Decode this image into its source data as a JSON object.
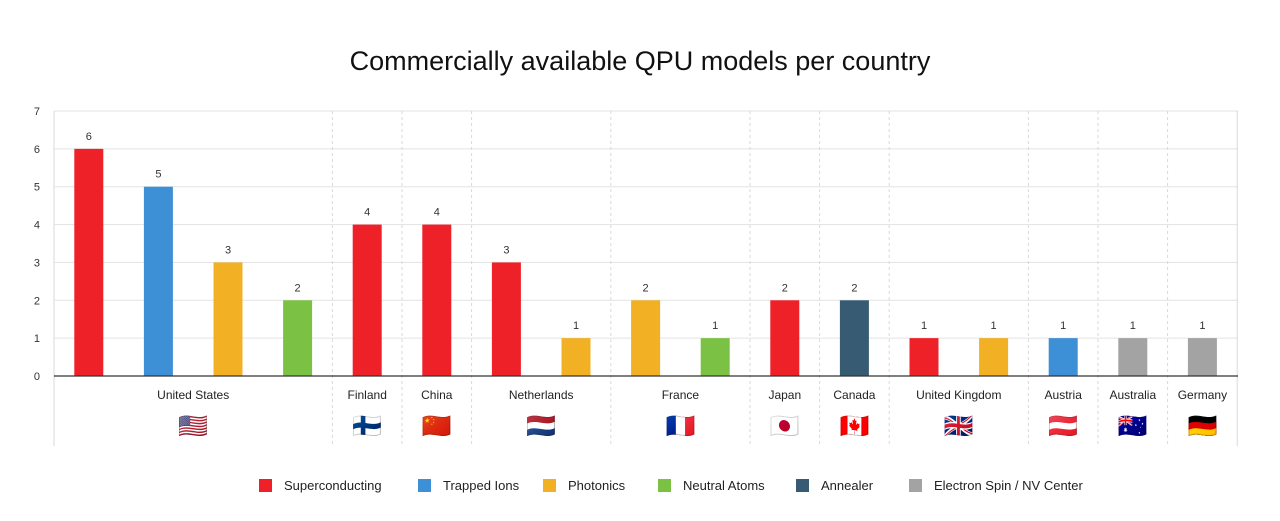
{
  "chart_data": {
    "type": "bar",
    "title": "Commercially available QPU models per country",
    "xlabel": "",
    "ylabel": "",
    "ylim": [
      0,
      7
    ],
    "yticks": [
      0,
      1,
      2,
      3,
      4,
      5,
      6,
      7
    ],
    "grid": true,
    "legend_position": "bottom",
    "series": [
      {
        "name": "Superconducting",
        "color": "#ee2028"
      },
      {
        "name": "Trapped Ions",
        "color": "#3d8fd6"
      },
      {
        "name": "Photonics",
        "color": "#f2b025"
      },
      {
        "name": "Neutral Atoms",
        "color": "#7bc143"
      },
      {
        "name": "Annealer",
        "color": "#365b72"
      },
      {
        "name": "Electron Spin / NV Center",
        "color": "#a3a3a3"
      }
    ],
    "groups": [
      {
        "country": "United States",
        "flag": "🇺🇸",
        "bars": [
          {
            "series": "Superconducting",
            "value": 6
          },
          {
            "series": "Trapped Ions",
            "value": 5
          },
          {
            "series": "Photonics",
            "value": 3
          },
          {
            "series": "Neutral Atoms",
            "value": 2
          }
        ]
      },
      {
        "country": "Finland",
        "flag": "🇫🇮",
        "bars": [
          {
            "series": "Superconducting",
            "value": 4
          }
        ]
      },
      {
        "country": "China",
        "flag": "🇨🇳",
        "bars": [
          {
            "series": "Superconducting",
            "value": 4
          }
        ]
      },
      {
        "country": "Netherlands",
        "flag": "🇳🇱",
        "bars": [
          {
            "series": "Superconducting",
            "value": 3
          },
          {
            "series": "Photonics",
            "value": 1
          }
        ]
      },
      {
        "country": "France",
        "flag": "🇫🇷",
        "bars": [
          {
            "series": "Photonics",
            "value": 2
          },
          {
            "series": "Neutral Atoms",
            "value": 1
          }
        ]
      },
      {
        "country": "Japan",
        "flag": "🇯🇵",
        "bars": [
          {
            "series": "Superconducting",
            "value": 2
          }
        ]
      },
      {
        "country": "Canada",
        "flag": "🇨🇦",
        "bars": [
          {
            "series": "Annealer",
            "value": 2
          }
        ]
      },
      {
        "country": "United Kingdom",
        "flag": "🇬🇧",
        "bars": [
          {
            "series": "Superconducting",
            "value": 1
          },
          {
            "series": "Photonics",
            "value": 1
          }
        ]
      },
      {
        "country": "Austria",
        "flag": "🇦🇹",
        "bars": [
          {
            "series": "Trapped Ions",
            "value": 1
          }
        ]
      },
      {
        "country": "Australia",
        "flag": "🇦🇺",
        "bars": [
          {
            "series": "Electron Spin / NV Center",
            "value": 1
          }
        ]
      },
      {
        "country": "Germany",
        "flag": "🇩🇪",
        "bars": [
          {
            "series": "Electron Spin / NV Center",
            "value": 1
          }
        ]
      }
    ]
  }
}
